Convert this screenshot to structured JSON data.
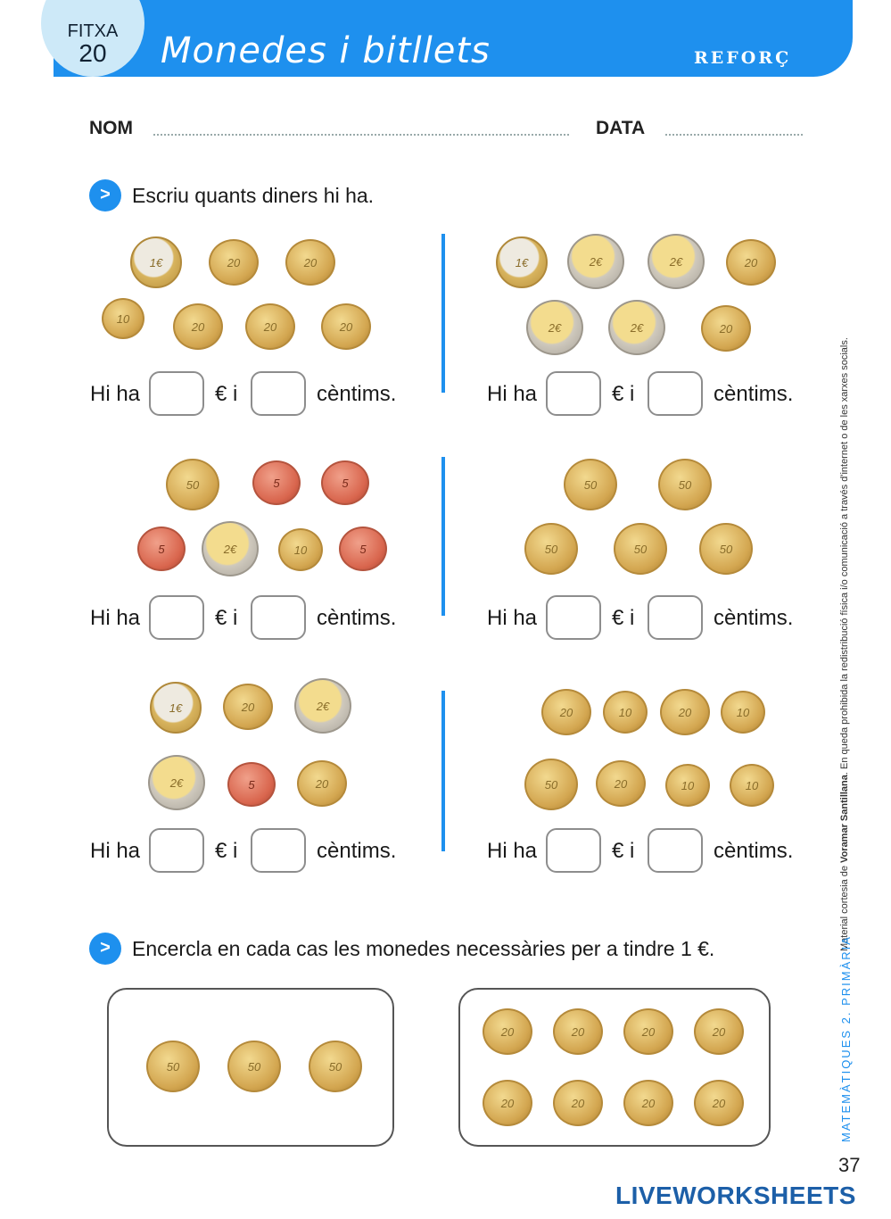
{
  "header": {
    "fitxa_label": "FITXA",
    "fitxa_number": "20",
    "title": "Monedes i bitllets",
    "badge": "REFORÇ"
  },
  "fields": {
    "name_label": "NOM",
    "date_label": "DATA"
  },
  "exercise1": {
    "arrow": ">",
    "instruction": "Escriu quants diners hi ha.",
    "hi_ha": "Hi ha",
    "euro_i": "€ i",
    "centims": "cèntims.",
    "groups": [
      {
        "coins": [
          "1€",
          "20",
          "20",
          "10",
          "20",
          "20",
          "20"
        ]
      },
      {
        "coins": [
          "1€",
          "2€",
          "2€",
          "20",
          "2€",
          "2€",
          "20"
        ]
      },
      {
        "coins": [
          "50",
          "5",
          "5",
          "5",
          "2€",
          "10",
          "5"
        ]
      },
      {
        "coins": [
          "50",
          "50",
          "50",
          "50",
          "50"
        ]
      },
      {
        "coins": [
          "1€",
          "20",
          "2€",
          "2€",
          "5",
          "20"
        ]
      },
      {
        "coins": [
          "20",
          "10",
          "20",
          "10",
          "50",
          "20",
          "10",
          "10"
        ]
      }
    ]
  },
  "exercise2": {
    "arrow": ">",
    "instruction": "Encercla en cada cas les monedes necessàries per a tindre 1 €.",
    "box1": [
      "50",
      "50",
      "50"
    ],
    "box2": [
      "20",
      "20",
      "20",
      "20",
      "20",
      "20",
      "20",
      "20"
    ]
  },
  "sidebar": {
    "copyright_prefix": "Material cortesia de ",
    "publisher": "Voramar Santillana",
    "copyright_suffix": ". En queda prohibida la redistribució física i/o comunicació a través d'internet o de les xarxes socials.",
    "course": "MATEMÀTIQUES 2. PRIMÀRIA"
  },
  "footer": {
    "page_number": "37",
    "brand": "LIVEWORKSHEETS"
  }
}
